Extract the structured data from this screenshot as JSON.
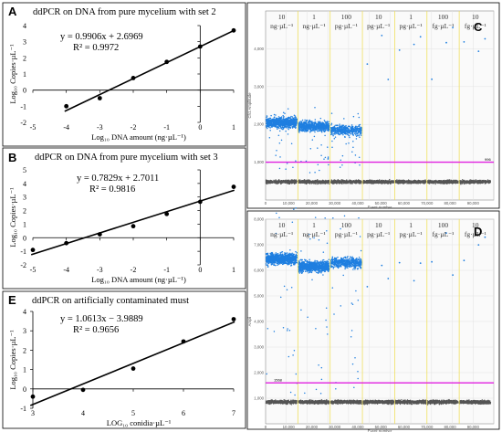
{
  "chart_data": [
    {
      "panel": "A",
      "type": "scatter",
      "title": "ddPCR on DNA from pure mycelium with set 2",
      "equation": "y = 0.9906x + 2.6969",
      "r2": "R² = 0.9972",
      "xlabel": "Log₁₀ DNA amount (ng·µL⁻¹)",
      "ylabel": "Log₁₀ Copies·µL⁻¹",
      "xlim": [
        -5,
        1
      ],
      "ylim": [
        -2,
        4
      ],
      "xticks": [
        "-5",
        "-4",
        "-3",
        "-2",
        "-1",
        "0",
        "1"
      ],
      "yticks": [
        "-2",
        "-1",
        "0",
        "1",
        "2",
        "3",
        "4"
      ],
      "x": [
        -4,
        -3,
        -2,
        -1,
        0,
        1
      ],
      "y": [
        -1.0,
        -0.5,
        0.75,
        1.75,
        2.7,
        3.7
      ],
      "fit": {
        "slope": 0.9906,
        "intercept": 2.6969
      }
    },
    {
      "panel": "B",
      "type": "scatter",
      "title": "ddPCR on DNA from pure mycelium with set 3",
      "equation": "y = 0.7829x + 2.7011",
      "r2": "R² = 0.9816",
      "xlabel": "Log₁₀ DNA amount (ng·µL⁻¹)",
      "ylabel": "Log₁₀ Copies·µL⁻¹",
      "xlim": [
        -5,
        1
      ],
      "ylim": [
        -2,
        5
      ],
      "xticks": [
        "-5",
        "-4",
        "-3",
        "-2",
        "-1",
        "0",
        "1"
      ],
      "yticks": [
        "-2",
        "-1",
        "0",
        "1",
        "2",
        "3",
        "4",
        "5"
      ],
      "x": [
        -5,
        -4,
        -3,
        -2,
        -1,
        0,
        1
      ],
      "y": [
        -0.9,
        -0.4,
        0.25,
        0.85,
        1.75,
        2.65,
        3.75
      ],
      "fit": {
        "slope": 0.7829,
        "intercept": 2.7011
      }
    },
    {
      "panel": "E",
      "type": "scatter",
      "title": "ddPCR on artificially contaminated must",
      "equation": "y = 1.0613x − 3.9889",
      "r2": "R² = 0.9656",
      "xlabel": "LOG₁₀ conidia·µL⁻¹",
      "ylabel": "Log₁₀ Copies·µL⁻¹",
      "xlim": [
        3,
        7
      ],
      "ylim": [
        -1,
        4
      ],
      "xticks": [
        "3",
        "4",
        "5",
        "6",
        "7"
      ],
      "yticks": [
        "-1",
        "0",
        "1",
        "2",
        "3",
        "4"
      ],
      "x": [
        3,
        4,
        5,
        6,
        7
      ],
      "y": [
        -0.4,
        -0.05,
        1.05,
        2.45,
        3.6
      ],
      "fit": {
        "slope": 1.0613,
        "intercept": -3.9889
      }
    },
    {
      "panel": "C",
      "type": "scatter",
      "xlabel": "Event number",
      "ylabel": "Ch1 Amplitude",
      "xlim": [
        0,
        99000
      ],
      "ylim": [
        0,
        5000
      ],
      "xticks": [
        "0",
        "10,000",
        "20,000",
        "30,000",
        "40,000",
        "50,000",
        "60,000",
        "70,000",
        "80,000",
        "90,000"
      ],
      "yticks": [
        "1,000",
        "2,000",
        "3,000",
        "4,000"
      ],
      "threshold": 1000,
      "threshold_label": "996",
      "segments": [
        {
          "top": "10",
          "bottom": "ng·µL⁻¹",
          "pos_level": 2050
        },
        {
          "top": "1",
          "bottom": "ng·µL⁻¹",
          "pos_level": 1950
        },
        {
          "top": "100",
          "bottom": "pg·µL⁻¹",
          "pos_level": 1850
        },
        {
          "top": "10",
          "bottom": "pg·µL⁻¹",
          "pos_level": null
        },
        {
          "top": "1",
          "bottom": "pg·µL⁻¹",
          "pos_level": null
        },
        {
          "top": "100",
          "bottom": "fg·µL⁻¹",
          "pos_level": null
        },
        {
          "top": "10",
          "bottom": "fg·µL⁻¹",
          "pos_level": null
        }
      ],
      "negative_level": 480,
      "colors": {
        "positive": "#1f7fe0",
        "negative": "#555555",
        "threshold": "#e020e0"
      }
    },
    {
      "panel": "D",
      "type": "scatter",
      "xlabel": "Event number",
      "ylabel": "Ampli",
      "xlim": [
        0,
        99000
      ],
      "ylim": [
        0,
        8000
      ],
      "xticks": [
        "0",
        "10,000",
        "20,000",
        "30,000",
        "40,000",
        "50,000",
        "60,000",
        "70,000",
        "80,000",
        "90,000"
      ],
      "yticks": [
        "1,000",
        "2,000",
        "3,000",
        "4,000",
        "5,000",
        "6,000",
        "7,000",
        "8,000"
      ],
      "threshold": 1600,
      "threshold_label": "1568",
      "segments": [
        {
          "top": "10",
          "bottom": "ng·µL⁻¹",
          "pos_level": 6450
        },
        {
          "top": "1",
          "bottom": "ng·µL⁻¹",
          "pos_level": 6150
        },
        {
          "top": "100",
          "bottom": "pg·µL⁻¹",
          "pos_level": 6300
        },
        {
          "top": "10",
          "bottom": "pg·µL⁻¹",
          "pos_level": null
        },
        {
          "top": "1",
          "bottom": "pg·µL⁻¹",
          "pos_level": null
        },
        {
          "top": "100",
          "bottom": "fg·µL⁻¹",
          "pos_level": null
        },
        {
          "top": "10",
          "bottom": "fg·µL⁻¹",
          "pos_level": null
        }
      ],
      "negative_level": 850,
      "colors": {
        "positive": "#1f7fe0",
        "negative": "#555555",
        "threshold": "#e020e0"
      }
    }
  ]
}
